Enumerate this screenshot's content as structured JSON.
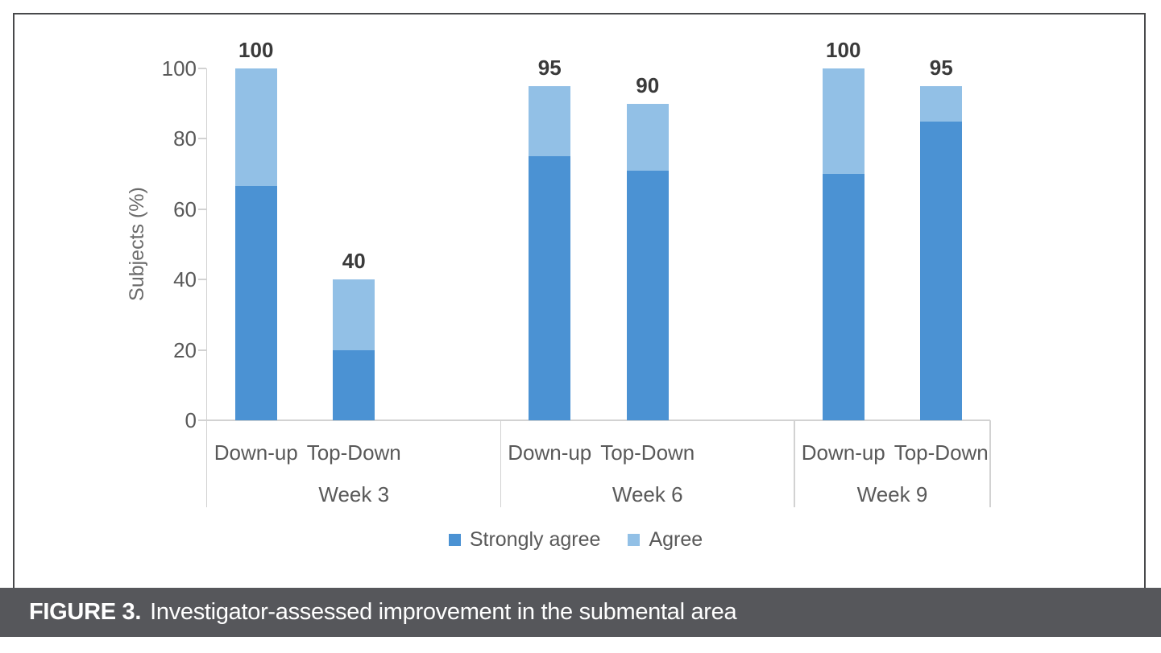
{
  "figure": {
    "caption_label": "FIGURE 3.",
    "caption_text": "Investigator-assessed improvement in the submental area"
  },
  "colors": {
    "strongly_agree": "#4b92d3",
    "agree": "#92c0e6",
    "axis_line": "#d2d2d2",
    "axis_text": "#595959",
    "data_label_text": "#3a3a3a",
    "frame_border": "#48494b",
    "caption_bg": "#56575b",
    "caption_text": "#ffffff"
  },
  "chart_data": {
    "type": "bar",
    "stacked": true,
    "title": "",
    "xlabel": "",
    "ylabel": "Subjects (%)",
    "ylim": [
      0,
      100
    ],
    "yticks": [
      0,
      20,
      40,
      60,
      80,
      100
    ],
    "grid": false,
    "legend_position": "bottom",
    "groups": [
      {
        "label": "Week 3",
        "categories": [
          "Down-up",
          "Top-Down"
        ]
      },
      {
        "label": "Week 6",
        "categories": [
          "Down-up",
          "Top-Down"
        ]
      },
      {
        "label": "Week 9",
        "categories": [
          "Down-up",
          "Top-Down"
        ]
      }
    ],
    "categories": [
      "Down-up",
      "Top-Down",
      "Down-up",
      "Top-Down",
      "Down-up",
      "Top-Down"
    ],
    "series": [
      {
        "name": "Strongly agree",
        "color": "#4b92d3",
        "values": [
          66.7,
          20,
          75,
          71,
          70,
          85
        ]
      },
      {
        "name": "Agree",
        "color": "#92c0e6",
        "values": [
          33.3,
          20,
          20,
          19,
          30,
          10
        ]
      }
    ],
    "total_labels": [
      "100",
      "40",
      "95",
      "90",
      "100",
      "95"
    ]
  }
}
